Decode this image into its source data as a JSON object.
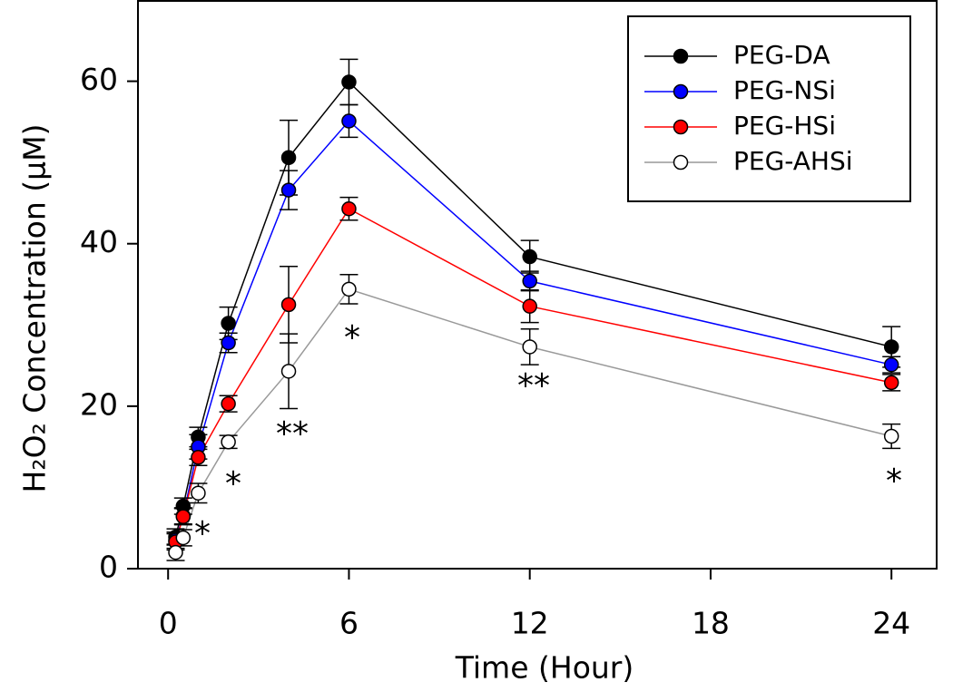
{
  "chart_data": {
    "type": "line",
    "x_label": "Time (Hour)",
    "y_label": "H₂O₂ Concentration (μM)",
    "x": [
      0.25,
      0.5,
      1,
      2,
      4,
      6,
      12,
      24
    ],
    "xlim": [
      -1,
      25.5
    ],
    "xticks": [
      0,
      6,
      12,
      18,
      24
    ],
    "ylim": [
      0,
      70
    ],
    "yticks": [
      0,
      20,
      40,
      60
    ],
    "legend": "upper right",
    "series": [
      {
        "name": "PEG-DA",
        "color": "#000000",
        "marker_fill": "#000000",
        "values": [
          3.9,
          7.7,
          16.2,
          30.2,
          50.6,
          59.9,
          38.4,
          27.3
        ],
        "errors": [
          1,
          1,
          1.2,
          2,
          4.6,
          2.8,
          2,
          2.5
        ]
      },
      {
        "name": "PEG-NSi",
        "color": "#0000ff",
        "marker_fill": "#0000ff",
        "values": [
          3.5,
          6.5,
          15,
          27.8,
          46.6,
          55.1,
          35.4,
          25.1
        ],
        "errors": [
          1,
          1,
          1.5,
          1.2,
          2.4,
          2,
          1.2,
          1
        ]
      },
      {
        "name": "PEG-HSi",
        "color": "#ff0000",
        "marker_fill": "#ff0000",
        "values": [
          3.3,
          6.4,
          13.7,
          20.3,
          32.5,
          44.3,
          32.3,
          22.9
        ],
        "errors": [
          1,
          1,
          1,
          1,
          4.7,
          1.4,
          2,
          1
        ]
      },
      {
        "name": "PEG-AHSi",
        "color": "#999999",
        "marker_fill": "#ffffff",
        "values": [
          2.0,
          3.8,
          9.3,
          15.6,
          24.3,
          34.4,
          27.3,
          16.3
        ],
        "errors": [
          1,
          1,
          1.2,
          0.8,
          4.6,
          1.8,
          2.2,
          1.5
        ]
      }
    ],
    "annotations": [
      "*",
      "*",
      "**",
      "*",
      "**",
      "*"
    ]
  }
}
